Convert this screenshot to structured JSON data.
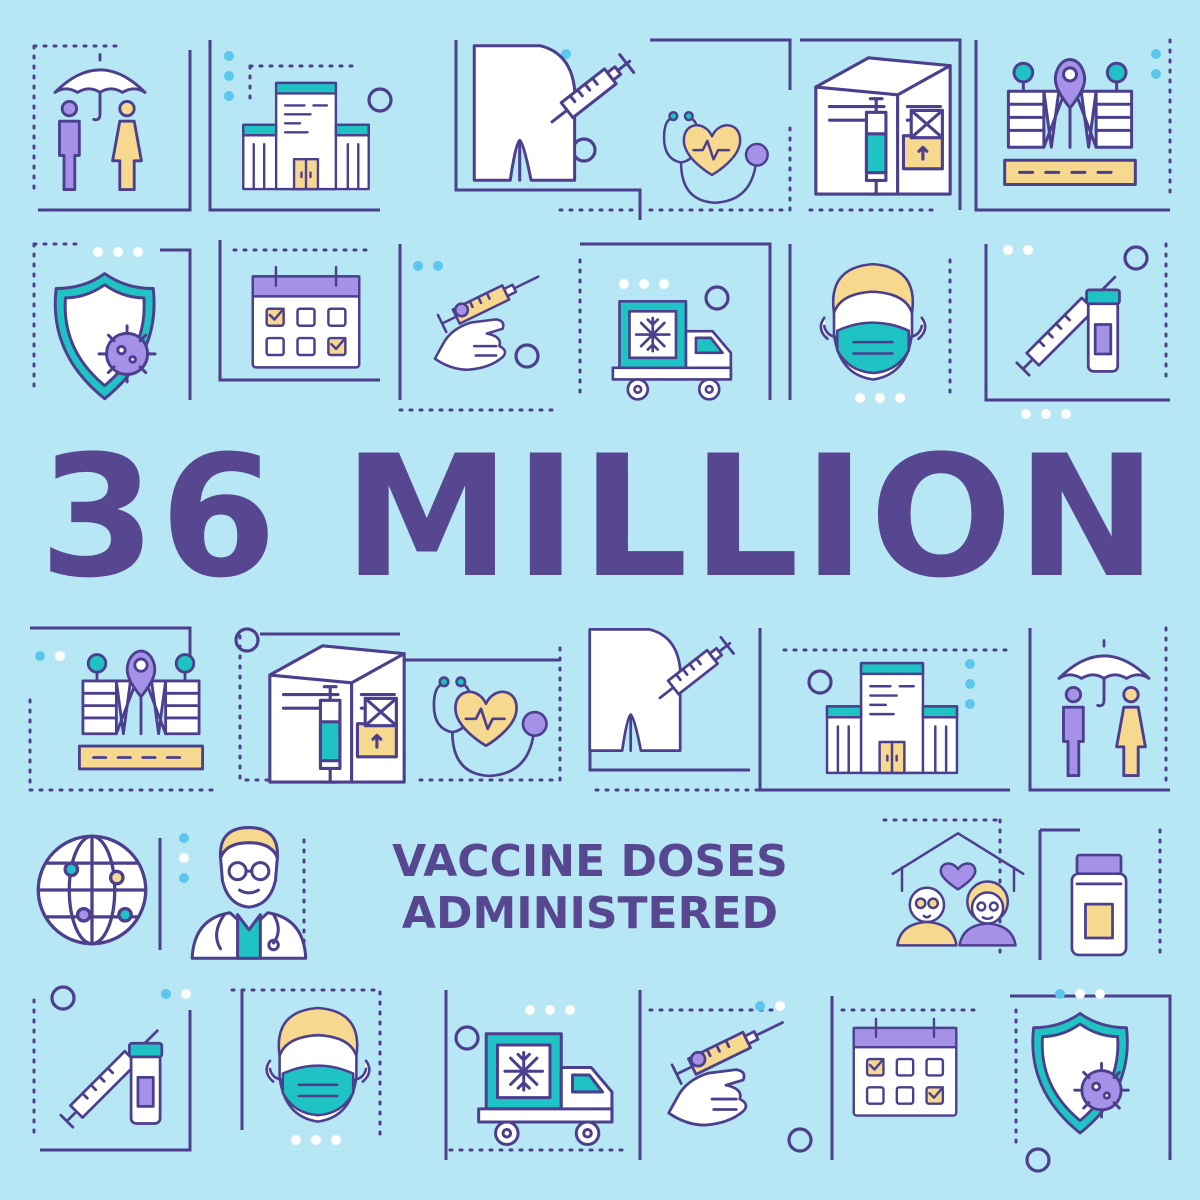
{
  "headline": "36 MILLION",
  "subheadline": {
    "line1": "VACCINE DOSES",
    "line2": "ADMINISTERED"
  },
  "colors": {
    "background": "#b7e6f4",
    "text": "#574791",
    "stroke": "#4b3f8e",
    "teal": "#1fc3c4",
    "yellow": "#f6d98f",
    "purple": "#a592e8"
  },
  "icons": [
    "umbrella-family-icon",
    "hospital-icon",
    "shoulder-injection-icon",
    "stethoscope-heart-icon",
    "warehouse-vaccine-icon",
    "map-location-icon",
    "virus-shield-icon",
    "calendar-icon",
    "hand-syringe-icon",
    "refrigerated-truck-icon",
    "face-mask-icon",
    "syringe-vial-icon",
    "globe-network-icon",
    "doctor-icon",
    "elderly-couple-home-icon",
    "vaccine-vial-icon"
  ]
}
